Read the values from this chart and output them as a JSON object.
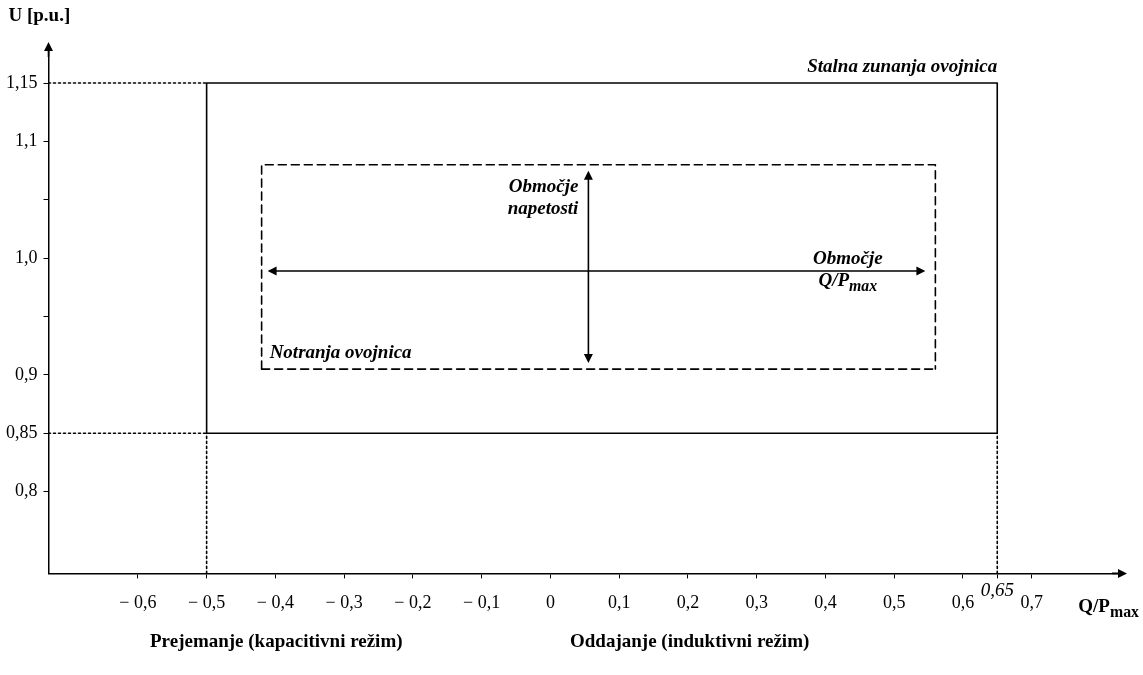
{
  "chart_data": {
    "type": "line",
    "xlabel": "Q/P$_{max}$",
    "ylabel": "U [p.u.]",
    "xlim": [
      -0.73,
      0.83
    ],
    "ylim": [
      0.73,
      1.18
    ],
    "xticks": [
      {
        "value": -0.6,
        "label": "− 0,6"
      },
      {
        "value": -0.5,
        "label": "− 0,5"
      },
      {
        "value": -0.4,
        "label": "− 0,4"
      },
      {
        "value": -0.3,
        "label": "− 0,3"
      },
      {
        "value": -0.2,
        "label": "− 0,2"
      },
      {
        "value": -0.1,
        "label": "− 0,1"
      },
      {
        "value": 0,
        "label": "0"
      },
      {
        "value": 0.1,
        "label": "0,1"
      },
      {
        "value": 0.2,
        "label": "0,2"
      },
      {
        "value": 0.3,
        "label": "0,3"
      },
      {
        "value": 0.4,
        "label": "0,4"
      },
      {
        "value": 0.5,
        "label": "0,5"
      },
      {
        "value": 0.6,
        "label": "0,6"
      },
      {
        "value": 0.65,
        "label": null
      },
      {
        "value": 0.7,
        "label": "0,7"
      }
    ],
    "yticks": [
      {
        "value": 0.8,
        "label": "0,8"
      },
      {
        "value": 0.85,
        "label": "0,85"
      },
      {
        "value": 0.9,
        "label": "0,9"
      },
      {
        "value": 0.95,
        "label": null
      },
      {
        "value": 1.0,
        "label": "1,0"
      },
      {
        "value": 1.05,
        "label": null
      },
      {
        "value": 1.1,
        "label": "1,1"
      },
      {
        "value": 1.15,
        "label": "1,15"
      }
    ],
    "grid": false,
    "legend": false,
    "series": [
      {
        "name": "Stalna zunanja ovojnica",
        "color": "#000000",
        "line_style": "solid",
        "x": [
          -0.5,
          -0.5,
          0.65,
          0.65
        ],
        "values": [
          0.85,
          1.15,
          1.15,
          0.85
        ]
      },
      {
        "color": "#000000",
        "line_style": "solid",
        "x": [
          -0.5,
          0.65
        ],
        "values": [
          0.85,
          0.85
        ]
      },
      {
        "name": "Notranja ovojnica",
        "color": "#000000",
        "line_style": "dashed",
        "x": [
          -0.42,
          -0.42,
          0.56,
          0.56
        ],
        "values": [
          0.905,
          1.08,
          1.08,
          0.905
        ]
      },
      {
        "color": "#000000",
        "line_style": "dashed",
        "x": [
          -0.42,
          0.56
        ],
        "values": [
          0.905,
          0.905
        ]
      },
      {
        "color": "#000000",
        "line_style": "dotted",
        "x": [
          -0.73,
          -0.5
        ],
        "values": [
          1.15,
          1.15
        ]
      },
      {
        "color": "#000000",
        "line_style": "dotted",
        "x": [
          -0.73,
          -0.5
        ],
        "values": [
          0.85,
          0.85
        ]
      },
      {
        "color": "#000000",
        "line_style": "dotted",
        "x": [
          -0.5,
          -0.5
        ],
        "values": [
          0.73,
          0.85
        ]
      },
      {
        "color": "#000000",
        "line_style": "dotted",
        "x": [
          0.65,
          0.65
        ],
        "values": [
          0.73,
          0.85
        ]
      }
    ],
    "annotations": [
      "Območje napetosti",
      "Območje Q/P$_{max}$",
      {
        "text": "0,65",
        "x": 0.65,
        "y": 0.73
      },
      "Prejemanje (kapacitivni režim)",
      "Oddajanje (induktivni režim)"
    ]
  }
}
